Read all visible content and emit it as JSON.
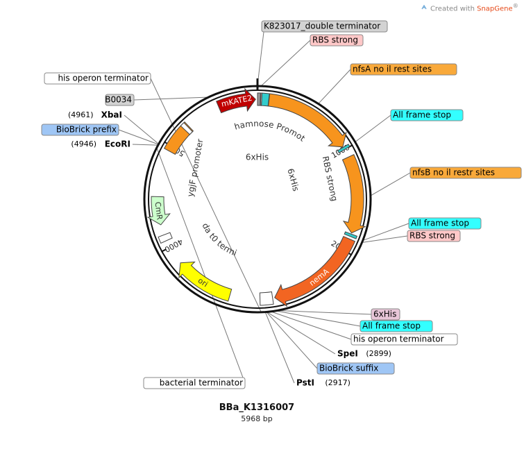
{
  "watermark": {
    "prefix": "Created with",
    "brand": "SnapGene",
    "mark": "®",
    "icon": "snapgene-logo-icon"
  },
  "plasmid": {
    "name": "BBa_K1316007",
    "length_label": "5968 bp",
    "length_bp": 5968
  },
  "colors": {
    "mKATE2": "#c00000",
    "orange": "#f7941d",
    "nemA": "#f26522",
    "ori": "#ffff00",
    "CmR": "#ccffcc",
    "cyan": "#33cccc",
    "rbs_fill": "#ffc0c0",
    "grey_feature": "#999999",
    "label_orange": "#f9a93a",
    "label_cyan": "#33ffff",
    "label_blue": "#9fc6f5",
    "label_pink": "#e8c6d8",
    "label_grey": "#d3d3d3",
    "label_rbs": "#ffc8c8"
  },
  "ticks": [
    {
      "label": "1000",
      "bp": 1000
    },
    {
      "label": "2000",
      "bp": 2000
    },
    {
      "label": "4000",
      "bp": 4000
    },
    {
      "label": "5000",
      "bp": 5000
    }
  ],
  "features": [
    {
      "name": "mKATE2",
      "shown_label": "mKATE2",
      "kind": "arrow",
      "start": 5590,
      "end": 5950,
      "strand": 1,
      "color_key": "mKATE2",
      "text_color": "#ffffff"
    },
    {
      "name": "nfsA",
      "shown_label": "",
      "kind": "arrow",
      "start": 110,
      "end": 970,
      "strand": 1,
      "color_key": "orange"
    },
    {
      "name": "nfsB",
      "shown_label": "",
      "kind": "arrow",
      "start": 1080,
      "end": 1820,
      "strand": 1,
      "color_key": "orange"
    },
    {
      "name": "nemA",
      "shown_label": "nemA",
      "kind": "arrow",
      "start": 1880,
      "end": 2820,
      "strand": 1,
      "color_key": "nemA",
      "text_color": "#ffffff"
    },
    {
      "name": "ori",
      "shown_label": "ori",
      "kind": "arrow",
      "start": 3250,
      "end": 3820,
      "strand": 1,
      "color_key": "ori",
      "text_color": "#333333"
    },
    {
      "name": "CmR",
      "shown_label": "CmR",
      "kind": "arrow",
      "start": 4500,
      "end": 4230,
      "strand": -1,
      "color_key": "CmR",
      "text_color": "#333333"
    },
    {
      "name": "prefix-orange",
      "shown_label": "",
      "kind": "box",
      "start": 4950,
      "end": 5250,
      "color_key": "orange"
    },
    {
      "name": "K823017",
      "shown_label": "",
      "kind": "box",
      "start": 5968,
      "end": 5995,
      "color_key": "grey_feature"
    },
    {
      "name": "rbs-1",
      "shown_label": "",
      "kind": "box",
      "start": 5998,
      "end": 6008,
      "color_key": "rbs_fill"
    },
    {
      "name": "cyan-1",
      "shown_label": "",
      "kind": "box",
      "start": 6008,
      "end": 6075,
      "color_key": "cyan"
    },
    {
      "name": "stop-1",
      "shown_label": "",
      "kind": "box",
      "start": 975,
      "end": 1000,
      "color_key": "cyan"
    },
    {
      "name": "stop-2",
      "shown_label": "",
      "kind": "box",
      "start": 1830,
      "end": 1855,
      "color_key": "cyan"
    },
    {
      "name": "term-box-1",
      "shown_label": "",
      "kind": "box",
      "start": 4070,
      "end": 4130,
      "color_key": "white"
    },
    {
      "name": "term-box-2",
      "shown_label": "",
      "kind": "box",
      "start": 5200,
      "end": 5240,
      "color_key": "white"
    },
    {
      "name": "term-box-3",
      "shown_label": "",
      "kind": "box",
      "start": 2840,
      "end": 2960,
      "color_key": "white"
    }
  ],
  "inner_labels": [
    {
      "text": "Rhamnose Promoter",
      "kind": "arc",
      "from_bp": 5700,
      "to_bp": 640,
      "radius": 105
    },
    {
      "text": "6xHis",
      "kind": "plain",
      "angle_bp": 5960,
      "radius": 60,
      "rotate": 0
    },
    {
      "text": "6xHis",
      "kind": "plain",
      "angle_bp": 1020,
      "radius": 58,
      "rotate": 75
    },
    {
      "text": "RBS strong",
      "kind": "plain",
      "angle_bp": 1230,
      "radius": 108,
      "rotate": 78
    },
    {
      "text": "ygjF promoter",
      "kind": "plain",
      "angle_bp": 4920,
      "radius": 100,
      "rotate": -80
    },
    {
      "text": "lambda t0 terminator",
      "kind": "arc",
      "from_bp": 4080,
      "to_bp": 3300,
      "radius": 88
    }
  ],
  "labels": [
    {
      "text": "K823017_double terminator",
      "style": "label_grey",
      "box": true,
      "side": "center",
      "bp": 5968
    },
    {
      "text": "RBS strong",
      "style": "label_rbs",
      "box": true,
      "side": "right",
      "bp": 6003
    },
    {
      "text": "nfsA no il rest sites",
      "style": "label_orange",
      "box": true,
      "side": "right",
      "bp": 540
    },
    {
      "text": "All frame stop",
      "style": "label_cyan",
      "box": true,
      "side": "right",
      "bp": 988
    },
    {
      "text": "nfsB no il restr sites",
      "style": "label_orange",
      "box": true,
      "side": "right",
      "bp": 1460
    },
    {
      "text": "All frame stop",
      "style": "label_cyan",
      "box": true,
      "side": "right",
      "bp": 1842
    },
    {
      "text": "RBS strong",
      "style": "label_rbs",
      "box": true,
      "side": "right",
      "bp": 1862
    },
    {
      "text": "6xHis",
      "style": "label_pink",
      "box": true,
      "side": "right",
      "bp": 2790
    },
    {
      "text": "All frame stop",
      "style": "label_cyan",
      "box": true,
      "side": "right",
      "bp": 2815
    },
    {
      "text": "his operon terminator",
      "style": "white",
      "box": true,
      "side": "right",
      "bp": 2860
    },
    {
      "text": "SpeI",
      "pos": "(2899)",
      "style": "site",
      "box": false,
      "side": "right",
      "bp": 2899
    },
    {
      "text": "BioBrick suffix",
      "style": "label_blue",
      "box": true,
      "side": "right",
      "bp": 2905
    },
    {
      "text": "PstI",
      "pos": "(2917)",
      "style": "site",
      "box": false,
      "side": "right",
      "bp": 2917
    },
    {
      "text": "his operon terminator",
      "style": "white",
      "box": true,
      "side": "left",
      "bp": 2950
    },
    {
      "text": "B0034",
      "style": "label_grey",
      "box": true,
      "side": "left",
      "bp": 5530
    },
    {
      "text": "XbaI",
      "pos": "(4961)",
      "style": "site",
      "box": false,
      "side": "left",
      "bp": 4961
    },
    {
      "text": "BioBrick prefix",
      "style": "label_blue",
      "box": true,
      "side": "left",
      "bp": 4955
    },
    {
      "text": "EcoRI",
      "pos": "(4946)",
      "style": "site",
      "box": false,
      "side": "left",
      "bp": 4946
    },
    {
      "text": "bacterial terminator",
      "style": "white",
      "box": true,
      "side": "left",
      "bp": 4930
    }
  ]
}
